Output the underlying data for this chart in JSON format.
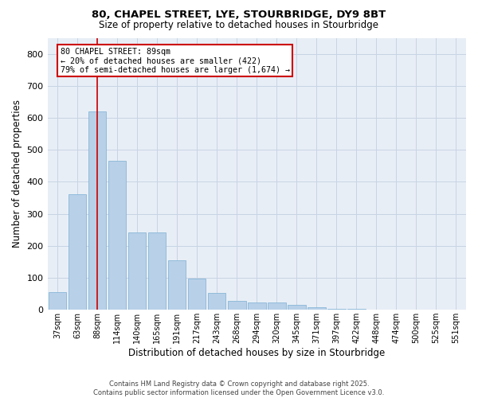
{
  "title_line1": "80, CHAPEL STREET, LYE, STOURBRIDGE, DY9 8BT",
  "title_line2": "Size of property relative to detached houses in Stourbridge",
  "xlabel": "Distribution of detached houses by size in Stourbridge",
  "ylabel": "Number of detached properties",
  "categories": [
    "37sqm",
    "63sqm",
    "88sqm",
    "114sqm",
    "140sqm",
    "165sqm",
    "191sqm",
    "217sqm",
    "243sqm",
    "268sqm",
    "294sqm",
    "320sqm",
    "345sqm",
    "371sqm",
    "397sqm",
    "422sqm",
    "448sqm",
    "474sqm",
    "500sqm",
    "525sqm",
    "551sqm"
  ],
  "values": [
    55,
    360,
    620,
    465,
    242,
    242,
    155,
    97,
    52,
    28,
    24,
    22,
    16,
    8,
    4,
    2,
    1,
    1,
    0,
    1,
    0
  ],
  "bar_color": "#b8d0e8",
  "bar_edge_color": "#7aafd4",
  "grid_color": "#c8d4e4",
  "bg_color": "#e8eef6",
  "vline_x": 2,
  "vline_color": "#cc0000",
  "annotation_text": "80 CHAPEL STREET: 89sqm\n← 20% of detached houses are smaller (422)\n79% of semi-detached houses are larger (1,674) →",
  "annotation_box_color": "#cc0000",
  "footnote": "Contains HM Land Registry data © Crown copyright and database right 2025.\nContains public sector information licensed under the Open Government Licence v3.0.",
  "ylim": [
    0,
    850
  ],
  "yticks": [
    0,
    100,
    200,
    300,
    400,
    500,
    600,
    700,
    800
  ]
}
